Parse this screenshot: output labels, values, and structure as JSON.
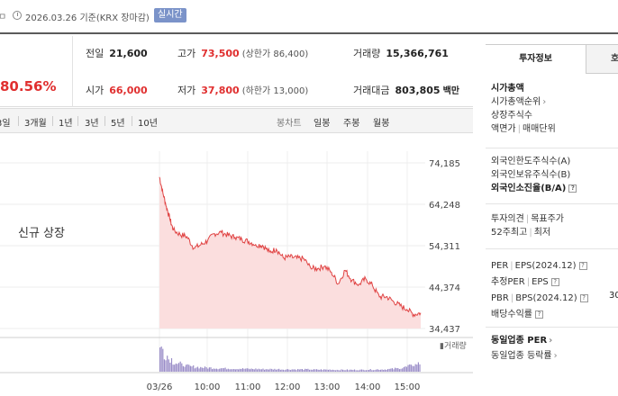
{
  "header": {
    "edge_text": "ㅁ",
    "date": "2026.03.26",
    "basis": "기준(KRX 장마감)",
    "badge": "실시간"
  },
  "summary": {
    "change_pct": "80.56%",
    "prev_close": {
      "label": "전일",
      "value": "21,600"
    },
    "open": {
      "label": "시가",
      "value": "66,000"
    },
    "high": {
      "label": "고가",
      "value": "73,500",
      "sub": "(상한가 86,400)"
    },
    "low": {
      "label": "저가",
      "value": "37,800",
      "sub": "(하한가 13,000)"
    },
    "volume": {
      "label": "거래량",
      "value": "15,366,761"
    },
    "amount": {
      "label": "거래대금",
      "value": "803,805",
      "unit": "백만"
    }
  },
  "periods": {
    "left": [
      "3일",
      "3개월",
      "1년",
      "3년",
      "5년",
      "10년"
    ],
    "right": [
      "봉차트",
      "일봉",
      "주봉",
      "월봉"
    ]
  },
  "chart_overlay": "신규 상장",
  "chart_data": {
    "type": "line",
    "y_ticks": [
      74185,
      64248,
      54311,
      44374,
      34437
    ],
    "ylim": [
      34437,
      74185
    ],
    "x_ticks": [
      "03/26",
      "10:00",
      "11:00",
      "12:00",
      "13:00",
      "14:00",
      "15:00"
    ],
    "volume_label": "거래량",
    "series": [
      {
        "x": [
          "09:00",
          "09:05",
          "09:10",
          "09:15",
          "09:20",
          "09:30",
          "09:40",
          "09:50",
          "10:00",
          "10:10",
          "10:20",
          "10:30",
          "10:40",
          "10:50",
          "11:00",
          "11:10",
          "11:20",
          "11:30",
          "11:40",
          "11:50",
          "12:00",
          "12:10",
          "12:20",
          "12:30",
          "12:40",
          "12:50",
          "13:00",
          "13:10",
          "13:20",
          "13:30",
          "13:40",
          "13:50",
          "14:00",
          "14:10",
          "14:20",
          "14:30",
          "14:40",
          "14:50",
          "15:00",
          "15:10",
          "15:20"
        ],
        "values": [
          70800,
          67000,
          63800,
          60800,
          58100,
          57000,
          56500,
          53700,
          54500,
          55500,
          57200,
          57500,
          56800,
          56300,
          55800,
          55300,
          54600,
          54400,
          52800,
          53500,
          51400,
          51600,
          51300,
          51200,
          48900,
          48800,
          49400,
          48000,
          45200,
          48400,
          46000,
          45000,
          46400,
          44700,
          42000,
          42100,
          41000,
          39900,
          39000,
          37800,
          38200
        ]
      }
    ],
    "volume": [
      100,
      70,
      55,
      40,
      35,
      30,
      25,
      22,
      20,
      19,
      18,
      17,
      16,
      15,
      15,
      14,
      14,
      13,
      13,
      13,
      12,
      12,
      12,
      11,
      11,
      11,
      11,
      11,
      10,
      10,
      10,
      10,
      10,
      10,
      10,
      9,
      9,
      9,
      9,
      9,
      8,
      8,
      8,
      8,
      8,
      8,
      8,
      9,
      9,
      9,
      10,
      10,
      11,
      12,
      14,
      16,
      20,
      25,
      30,
      35
    ]
  },
  "right_panel": {
    "tabs": [
      "투자정보",
      "호"
    ],
    "market_cap_title": "시가총액",
    "market_cap_rank": "시가총액순위",
    "shares": "상장주식수",
    "face_value": "액면가",
    "trade_unit": "매매단위",
    "foreign_limit": "외국인한도주식수(A)",
    "foreign_hold": "외국인보유주식수(B)",
    "foreign_ratio": "외국인소진율(B/A)",
    "opinion": "투자의견",
    "target": "목표주가",
    "week52": "52주최고",
    "week52_low": "최저",
    "per": "PER",
    "eps": "EPS(2024.12)",
    "est_per": "추정PER",
    "est_eps": "EPS",
    "pbr": "PBR",
    "bps": "BPS(2024.12)",
    "dividend": "배당수익률",
    "pbr_value": "30",
    "sector_per": "동일업종 PER",
    "sector_rate": "동일업종 등락률"
  }
}
